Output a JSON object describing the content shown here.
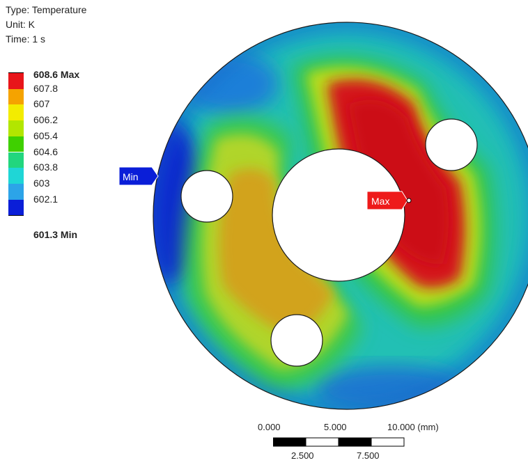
{
  "header": {
    "type_line": "Type: Temperature",
    "unit_line": "Unit: K",
    "time_line": "Time: 1 s"
  },
  "legend": {
    "max_label": "608.6 Max",
    "min_label": "601.3 Min",
    "ticks": [
      "607.8",
      "607",
      "606.2",
      "605.4",
      "604.6",
      "603.8",
      "603",
      "602.1"
    ],
    "colors": [
      "#e8151a",
      "#f5a300",
      "#f3ec00",
      "#b2e600",
      "#3fd000",
      "#22d67e",
      "#1fd6d6",
      "#2ca4e8",
      "#0a1ed8"
    ]
  },
  "probes": {
    "max_tag": "Max",
    "min_tag": "Min"
  },
  "scale_bar": {
    "top_labels": [
      "0.000",
      "5.000",
      "10.000 (mm)"
    ],
    "bottom_labels": [
      "2.500",
      "7.500"
    ]
  }
}
